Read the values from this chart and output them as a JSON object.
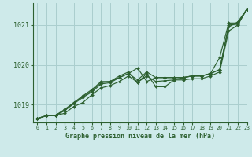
{
  "title": "Graphe pression niveau de la mer (hPa)",
  "background_color": "#ceeaea",
  "plot_bg_color": "#ceeaea",
  "grid_color": "#aacece",
  "line_color": "#2d6030",
  "marker_color": "#2d6030",
  "xlim": [
    -0.5,
    23
  ],
  "ylim": [
    1018.55,
    1021.55
  ],
  "yticks": [
    1019,
    1020,
    1021
  ],
  "ytick_labels": [
    "1019",
    "1020",
    "1021"
  ],
  "xticks": [
    0,
    1,
    2,
    3,
    4,
    5,
    6,
    7,
    8,
    9,
    10,
    11,
    12,
    13,
    14,
    15,
    16,
    17,
    18,
    19,
    20,
    21,
    22,
    23
  ],
  "series": [
    [
      1018.65,
      1018.72,
      1018.73,
      1018.78,
      1018.95,
      1019.05,
      1019.25,
      1019.42,
      1019.48,
      1019.58,
      1019.72,
      1019.56,
      1019.72,
      1019.58,
      1019.6,
      1019.62,
      1019.62,
      1019.65,
      1019.65,
      1019.72,
      1019.82,
      1020.85,
      1021.0,
      1021.4
    ],
    [
      1018.65,
      1018.72,
      1018.73,
      1018.85,
      1019.02,
      1019.18,
      1019.32,
      1019.52,
      1019.55,
      1019.68,
      1019.78,
      1019.62,
      1019.82,
      1019.68,
      1019.68,
      1019.68,
      1019.68,
      1019.72,
      1019.72,
      1019.78,
      1019.88,
      1021.0,
      1021.02,
      1021.4
    ],
    [
      1018.65,
      1018.72,
      1018.73,
      1018.88,
      1019.05,
      1019.22,
      1019.38,
      1019.58,
      1019.58,
      1019.72,
      1019.82,
      1019.55,
      1019.78,
      1019.45,
      1019.45,
      1019.62,
      1019.68,
      1019.72,
      1019.72,
      1019.78,
      1020.18,
      1021.05,
      1021.05,
      1021.4
    ],
    [
      1018.65,
      1018.72,
      1018.73,
      1018.85,
      1019.05,
      1019.2,
      1019.35,
      1019.55,
      1019.58,
      1019.68,
      1019.78,
      1019.92,
      1019.58,
      1019.68,
      1019.68,
      1019.68,
      1019.68,
      1019.72,
      1019.72,
      1019.78,
      1019.88,
      1020.95,
      1021.08,
      1021.4
    ]
  ]
}
